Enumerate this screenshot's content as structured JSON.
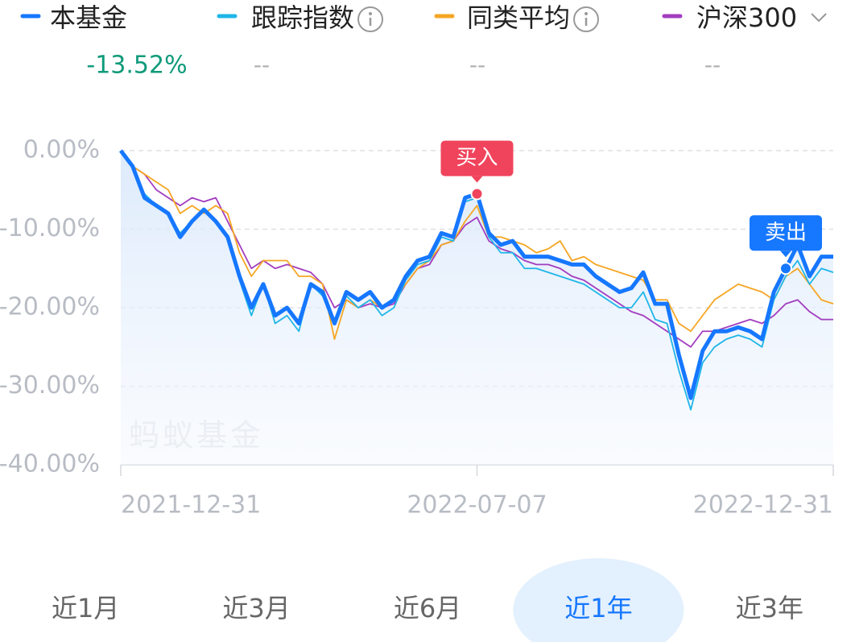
{
  "chart_data": {
    "type": "line",
    "series": [
      {
        "name": "本基金",
        "color": "#1677ff",
        "legend_value": "-13.52%",
        "values": [
          0,
          -2,
          -6,
          -7,
          -8,
          -11,
          -9,
          -7.5,
          -9,
          -11,
          -16,
          -20,
          -17,
          -21,
          -20,
          -22,
          -17,
          -18,
          -22,
          -18,
          -19,
          -18,
          -20,
          -19,
          -16,
          -14,
          -13.5,
          -10.5,
          -11,
          -6,
          -5.5,
          -10.5,
          -12,
          -11.5,
          -13.5,
          -13.5,
          -13.5,
          -14,
          -14.5,
          -14.5,
          -16,
          -17,
          -18,
          -17.5,
          -15.5,
          -19.5,
          -19.5,
          -26,
          -31.5,
          -25.5,
          -23,
          -23,
          -22.5,
          -23,
          -24,
          -18,
          -15,
          -12,
          -16,
          -13.5,
          -13.5
        ]
      },
      {
        "name": "跟踪指数",
        "color": "#1fb6e8",
        "legend_value": "--",
        "info_icon": true,
        "values": [
          0,
          -2,
          -5.5,
          -7,
          -8,
          -10.5,
          -9,
          -7.5,
          -9,
          -11,
          -16.5,
          -21,
          -17,
          -22,
          -21,
          -23,
          -17,
          -18.5,
          -22,
          -18.5,
          -20,
          -19,
          -21,
          -20,
          -16.5,
          -14.5,
          -14,
          -11,
          -11.5,
          -6.5,
          -6,
          -11,
          -13,
          -13,
          -15,
          -15,
          -15.5,
          -16,
          -16.5,
          -17,
          -18,
          -19,
          -20,
          -20,
          -18,
          -21.5,
          -22,
          -28,
          -33,
          -27,
          -25,
          -24,
          -23.5,
          -24,
          -25,
          -19,
          -16,
          -14,
          -17,
          -15,
          -15.5
        ]
      },
      {
        "name": "同类平均",
        "color": "#f5a623",
        "legend_value": "--",
        "info_icon": true,
        "values": [
          0,
          -2,
          -3,
          -4,
          -5,
          -8,
          -7,
          -8,
          -7,
          -8,
          -13,
          -16,
          -14,
          -14,
          -14,
          -16,
          -16,
          -17,
          -24,
          -19,
          -20,
          -19,
          -20,
          -19,
          -17,
          -15,
          -14,
          -12,
          -11.5,
          -9,
          -7,
          -11,
          -11,
          -11.5,
          -12,
          -13,
          -12.5,
          -11.5,
          -14,
          -13.5,
          -14.5,
          -15,
          -15.5,
          -16,
          -16.5,
          -19,
          -19,
          -22,
          -23,
          -21,
          -19,
          -18,
          -17,
          -17.5,
          -18,
          -19,
          -16,
          -15,
          -17,
          -19,
          -19.5
        ]
      },
      {
        "name": "沪深300",
        "color": "#a23dbf",
        "legend_value": "--",
        "values": [
          0,
          -2,
          -3,
          -5,
          -6,
          -7,
          -6,
          -6.5,
          -6,
          -9,
          -12,
          -15,
          -14,
          -15,
          -14.5,
          -15,
          -15.5,
          -17,
          -20,
          -19,
          -20,
          -19.5,
          -20,
          -19.5,
          -17,
          -15,
          -14.5,
          -12,
          -11.5,
          -9.5,
          -8.5,
          -11.5,
          -12.5,
          -13,
          -14,
          -14.5,
          -14.5,
          -15,
          -16,
          -16.5,
          -17.5,
          -18.5,
          -19.5,
          -20.5,
          -21,
          -22,
          -23,
          -24,
          -25,
          -23,
          -23,
          -22.5,
          -22,
          -21.5,
          -22,
          -21,
          -19.5,
          -19,
          -20.5,
          -21.5,
          -21.5
        ]
      }
    ],
    "categories": [
      "2021-12-31",
      null,
      null,
      null,
      null,
      null,
      null,
      null,
      null,
      null,
      null,
      null,
      null,
      null,
      null,
      null,
      null,
      null,
      null,
      null,
      null,
      null,
      null,
      null,
      null,
      null,
      null,
      null,
      null,
      null,
      "2022-07-07",
      null,
      null,
      null,
      null,
      null,
      null,
      null,
      null,
      null,
      null,
      null,
      null,
      null,
      null,
      null,
      null,
      null,
      null,
      null,
      null,
      null,
      null,
      null,
      null,
      null,
      null,
      null,
      null,
      null,
      "2022-12-31"
    ],
    "ylim": [
      -40,
      0
    ],
    "yticks": [
      {
        "value": 0,
        "label": "0.00%"
      },
      {
        "value": -10,
        "label": "-10.00%"
      },
      {
        "value": -20,
        "label": "-20.00%"
      },
      {
        "value": -30,
        "label": "-30.00%"
      },
      {
        "value": -40,
        "label": "-40.00%"
      }
    ],
    "grid": true,
    "annotations": [
      {
        "text": "买入",
        "index": 30,
        "color": "#f0445c"
      },
      {
        "text": "卖出",
        "index": 56,
        "color": "#1677ff"
      }
    ],
    "watermark": "蚂蚁基金",
    "tabs": [
      "近1月",
      "近3月",
      "近6月",
      "近1年",
      "近3年"
    ],
    "selected_tab": 3
  }
}
